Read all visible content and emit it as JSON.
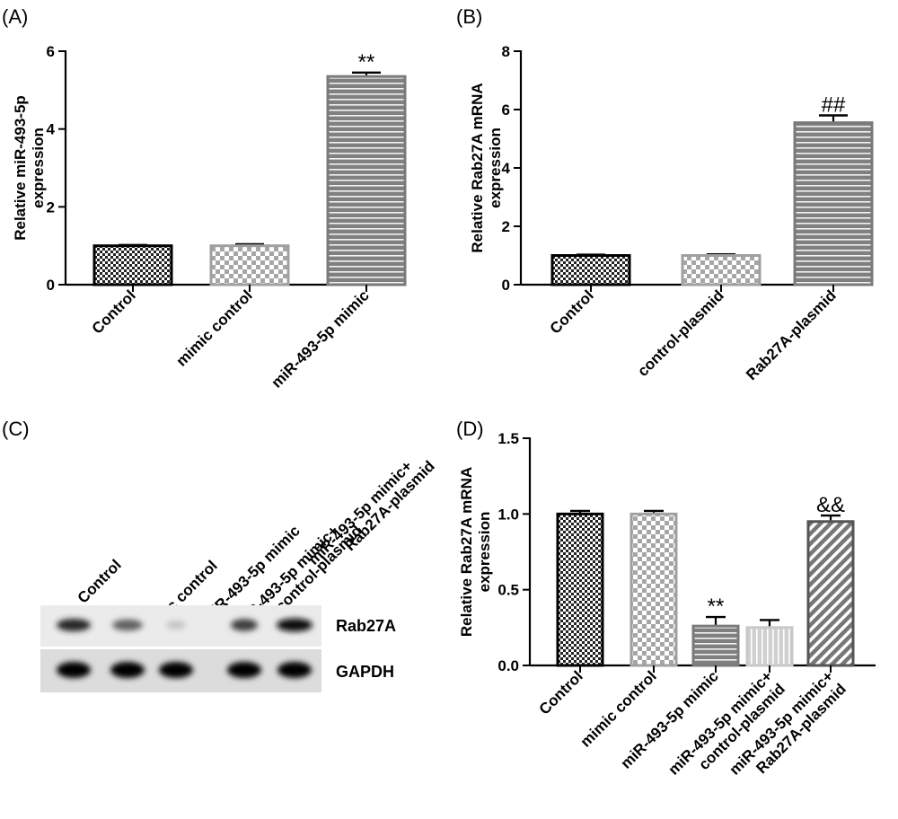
{
  "panels": {
    "A": {
      "letter": "(A)"
    },
    "B": {
      "letter": "(B)"
    },
    "C": {
      "letter": "(C)"
    },
    "D": {
      "letter": "(D)"
    }
  },
  "chart_data": [
    {
      "id": "A",
      "type": "bar",
      "ylabel": [
        "Relative miR-493-5p",
        "expression"
      ],
      "ylim": [
        0,
        6
      ],
      "yticks": [
        "0",
        "2",
        "4",
        "6"
      ],
      "categories": [
        "Control",
        "mimic control",
        "miR-493-5p mimic"
      ],
      "values": [
        1.0,
        1.0,
        5.35
      ],
      "errors": [
        0.02,
        0.04,
        0.1
      ],
      "patterns": [
        "checker-dark",
        "checker-light",
        "hlines"
      ],
      "annotations": [
        "",
        "",
        "**"
      ]
    },
    {
      "id": "B",
      "type": "bar",
      "ylabel": [
        "Relative Rab27A mRNA",
        "expression"
      ],
      "ylim": [
        0,
        8
      ],
      "yticks": [
        "0",
        "2",
        "4",
        "6",
        "8"
      ],
      "categories": [
        "Control",
        "control-plasmid",
        "Rab27A-plasmid"
      ],
      "values": [
        1.0,
        1.0,
        5.55
      ],
      "errors": [
        0.03,
        0.04,
        0.25
      ],
      "patterns": [
        "checker-dark",
        "checker-light",
        "hlines"
      ],
      "annotations": [
        "",
        "",
        "##"
      ]
    },
    {
      "id": "D",
      "type": "bar",
      "ylabel": [
        "Relative Rab27A mRNA",
        "expression"
      ],
      "ylim": [
        0,
        1.5
      ],
      "yticks": [
        "0.0",
        "0.5",
        "1.0",
        "1.5"
      ],
      "categories": [
        [
          "Control"
        ],
        [
          "mimic control"
        ],
        [
          "miR-493-5p mimic"
        ],
        [
          "miR-493-5p mimic+",
          "control-plasmid"
        ],
        [
          "miR-493-5p mimic+",
          "Rab27A-plasmid"
        ]
      ],
      "values": [
        1.0,
        1.0,
        0.26,
        0.25,
        0.95
      ],
      "errors": [
        0.02,
        0.02,
        0.06,
        0.05,
        0.04
      ],
      "patterns": [
        "checker-dark",
        "checker-light",
        "hlines",
        "vlines",
        "diag"
      ],
      "annotations": [
        "",
        "",
        "**",
        "",
        "&&"
      ]
    }
  ],
  "western_blot": {
    "lanes": [
      [
        "Control"
      ],
      [
        "mimic control"
      ],
      [
        "miR-493-5p mimic"
      ],
      [
        "miR-493-5p mimic+",
        "control-plasmid"
      ],
      [
        "miR-493-5p mimic+",
        "Rab27A-plasmid"
      ]
    ],
    "bands": [
      {
        "label": "Rab27A",
        "intensities": [
          0.85,
          0.6,
          0.15,
          0.75,
          0.95
        ]
      },
      {
        "label": "GAPDH",
        "intensities": [
          1.0,
          1.0,
          1.0,
          1.0,
          1.0
        ]
      }
    ]
  }
}
